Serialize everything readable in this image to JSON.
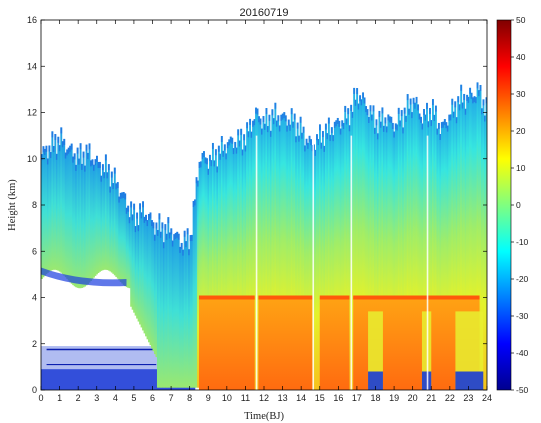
{
  "chart_data": {
    "type": "heatmap",
    "title": "20160719",
    "xlabel": "Time(BJ)",
    "ylabel": "Height (km)",
    "xlim": [
      0,
      24
    ],
    "ylim": [
      0,
      16
    ],
    "x_ticks": [
      0,
      1,
      2,
      3,
      4,
      5,
      6,
      7,
      8,
      9,
      10,
      11,
      12,
      13,
      14,
      15,
      16,
      17,
      18,
      19,
      20,
      21,
      22,
      23,
      24
    ],
    "y_ticks": [
      0,
      2,
      4,
      6,
      8,
      10,
      12,
      14,
      16
    ],
    "colorbar": {
      "min": -50,
      "max": 50,
      "ticks": [
        -50,
        -40,
        -30,
        -20,
        -10,
        0,
        10,
        20,
        30,
        40,
        50
      ],
      "colormap": "jet"
    },
    "echo_top_km": [
      [
        0.0,
        10.2
      ],
      [
        0.5,
        10.6
      ],
      [
        1.0,
        10.9
      ],
      [
        1.5,
        10.4
      ],
      [
        2.0,
        10.1
      ],
      [
        2.5,
        10.3
      ],
      [
        3.0,
        9.8
      ],
      [
        3.5,
        9.6
      ],
      [
        4.0,
        9.0
      ],
      [
        4.5,
        8.2
      ],
      [
        5.0,
        7.5
      ],
      [
        5.5,
        7.8
      ],
      [
        6.0,
        7.2
      ],
      [
        6.5,
        7.0
      ],
      [
        7.0,
        6.9
      ],
      [
        7.5,
        6.4
      ],
      [
        8.0,
        6.6
      ],
      [
        8.5,
        10.1
      ],
      [
        9.0,
        10.0
      ],
      [
        9.5,
        10.3
      ],
      [
        10.0,
        10.7
      ],
      [
        10.5,
        10.8
      ],
      [
        11.0,
        11.0
      ],
      [
        11.5,
        12.0
      ],
      [
        12.0,
        11.6
      ],
      [
        12.5,
        11.9
      ],
      [
        13.0,
        11.8
      ],
      [
        13.5,
        11.7
      ],
      [
        14.0,
        11.2
      ],
      [
        14.5,
        10.6
      ],
      [
        15.0,
        11.0
      ],
      [
        15.5,
        11.3
      ],
      [
        16.0,
        11.6
      ],
      [
        16.5,
        11.9
      ],
      [
        17.0,
        12.9
      ],
      [
        17.5,
        12.3
      ],
      [
        18.0,
        11.6
      ],
      [
        18.5,
        11.8
      ],
      [
        19.0,
        11.5
      ],
      [
        19.5,
        12.0
      ],
      [
        20.0,
        12.6
      ],
      [
        20.5,
        11.8
      ],
      [
        21.0,
        12.2
      ],
      [
        21.5,
        11.3
      ],
      [
        22.0,
        12.0
      ],
      [
        22.5,
        12.6
      ],
      [
        23.0,
        12.7
      ],
      [
        23.5,
        13.0
      ],
      [
        24.0,
        12.0
      ]
    ],
    "bright_band_km": 4.0,
    "strong_echo_periods": [
      [
        8.5,
        11.5
      ],
      [
        11.7,
        14.6
      ],
      [
        15.0,
        16.6
      ],
      [
        16.8,
        23.6
      ]
    ]
  },
  "colors": {
    "axis": "#000000",
    "background": "#ffffff"
  }
}
